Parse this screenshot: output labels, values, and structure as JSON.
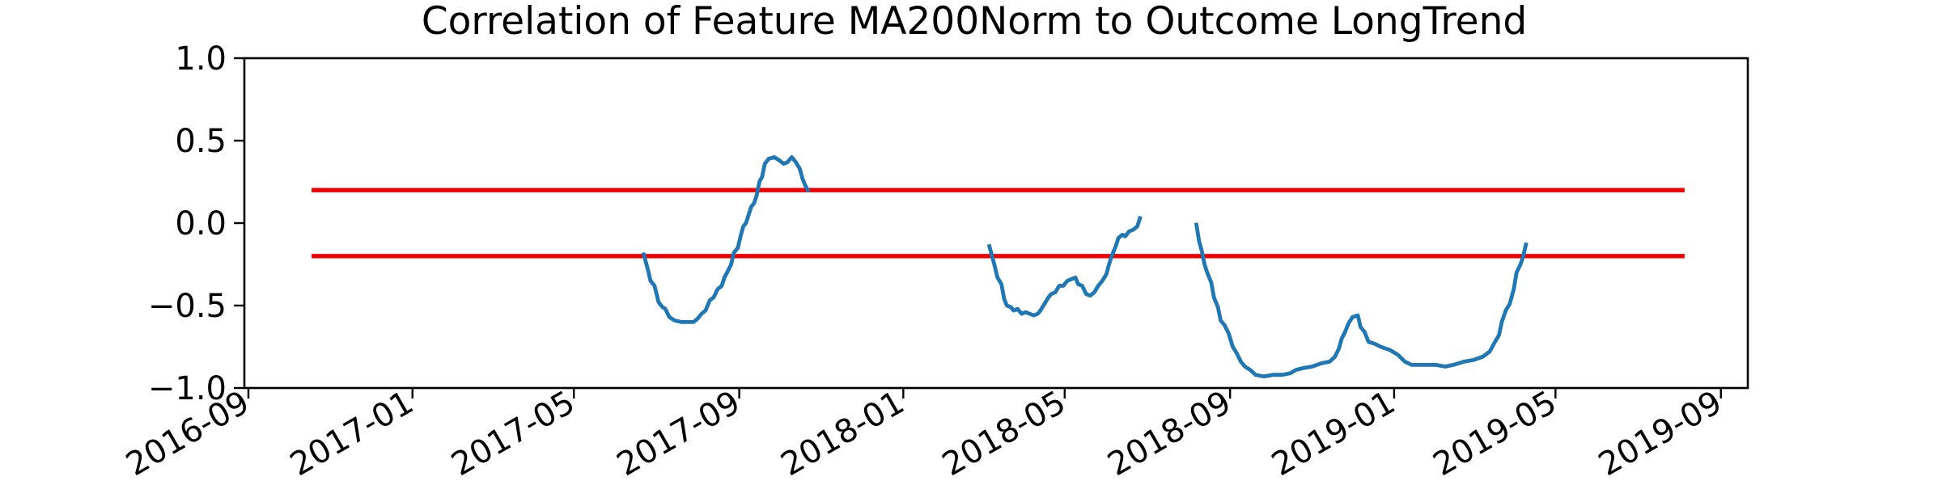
{
  "chart_data": {
    "type": "line",
    "title": "Correlation of Feature MA200Norm to Outcome LongTrend",
    "xlabel": "",
    "ylabel": "",
    "ylim": [
      -1.0,
      1.0
    ],
    "xlim": [
      "2016-08-29",
      "2019-09-21"
    ],
    "yticks": [
      {
        "value": 1.0,
        "label": "1.0"
      },
      {
        "value": 0.5,
        "label": "0.5"
      },
      {
        "value": 0.0,
        "label": "0.0"
      },
      {
        "value": -0.5,
        "label": "−0.5"
      },
      {
        "value": -1.0,
        "label": "−1.0"
      }
    ],
    "xticks": [
      {
        "date": "2016-09-01",
        "label": "2016-09"
      },
      {
        "date": "2017-01-01",
        "label": "2017-01"
      },
      {
        "date": "2017-05-01",
        "label": "2017-05"
      },
      {
        "date": "2017-09-01",
        "label": "2017-09"
      },
      {
        "date": "2018-01-01",
        "label": "2018-01"
      },
      {
        "date": "2018-05-01",
        "label": "2018-05"
      },
      {
        "date": "2018-09-01",
        "label": "2018-09"
      },
      {
        "date": "2019-01-01",
        "label": "2019-01"
      },
      {
        "date": "2019-05-01",
        "label": "2019-05"
      },
      {
        "date": "2019-09-01",
        "label": "2019-09"
      }
    ],
    "grid": false,
    "thresholds": [
      {
        "value": 0.2,
        "x_start": "2016-10-18",
        "x_end": "2019-08-05",
        "color": "#ee0000"
      },
      {
        "value": -0.2,
        "x_start": "2016-10-18",
        "x_end": "2019-08-05",
        "color": "#ee0000"
      }
    ],
    "series": [
      {
        "color": "#1f77b4",
        "segments": [
          [
            {
              "x": "2017-06-22",
              "y": -0.19
            },
            {
              "x": "2017-06-25",
              "y": -0.28
            },
            {
              "x": "2017-06-27",
              "y": -0.35
            },
            {
              "x": "2017-06-30",
              "y": -0.38
            },
            {
              "x": "2017-07-03",
              "y": -0.48
            },
            {
              "x": "2017-07-06",
              "y": -0.51
            },
            {
              "x": "2017-07-08",
              "y": -0.52
            },
            {
              "x": "2017-07-11",
              "y": -0.57
            },
            {
              "x": "2017-07-15",
              "y": -0.59
            },
            {
              "x": "2017-07-20",
              "y": -0.6
            },
            {
              "x": "2017-07-25",
              "y": -0.6
            },
            {
              "x": "2017-07-29",
              "y": -0.6
            },
            {
              "x": "2017-08-01",
              "y": -0.58
            },
            {
              "x": "2017-08-04",
              "y": -0.55
            },
            {
              "x": "2017-08-07",
              "y": -0.53
            },
            {
              "x": "2017-08-10",
              "y": -0.47
            },
            {
              "x": "2017-08-13",
              "y": -0.45
            },
            {
              "x": "2017-08-16",
              "y": -0.4
            },
            {
              "x": "2017-08-19",
              "y": -0.38
            },
            {
              "x": "2017-08-21",
              "y": -0.33
            },
            {
              "x": "2017-08-23",
              "y": -0.3
            },
            {
              "x": "2017-08-26",
              "y": -0.25
            },
            {
              "x": "2017-08-28",
              "y": -0.18
            },
            {
              "x": "2017-08-31",
              "y": -0.15
            },
            {
              "x": "2017-09-02",
              "y": -0.08
            },
            {
              "x": "2017-09-04",
              "y": -0.02
            },
            {
              "x": "2017-09-06",
              "y": 0.0
            },
            {
              "x": "2017-09-08",
              "y": 0.05
            },
            {
              "x": "2017-09-10",
              "y": 0.1
            },
            {
              "x": "2017-09-12",
              "y": 0.12
            },
            {
              "x": "2017-09-14",
              "y": 0.17
            },
            {
              "x": "2017-09-16",
              "y": 0.25
            },
            {
              "x": "2017-09-18",
              "y": 0.28
            },
            {
              "x": "2017-09-20",
              "y": 0.36
            },
            {
              "x": "2017-09-23",
              "y": 0.39
            },
            {
              "x": "2017-09-27",
              "y": 0.4
            },
            {
              "x": "2017-10-01",
              "y": 0.38
            },
            {
              "x": "2017-10-04",
              "y": 0.36
            },
            {
              "x": "2017-10-07",
              "y": 0.37
            },
            {
              "x": "2017-10-10",
              "y": 0.4
            },
            {
              "x": "2017-10-13",
              "y": 0.37
            },
            {
              "x": "2017-10-16",
              "y": 0.33
            },
            {
              "x": "2017-10-18",
              "y": 0.27
            },
            {
              "x": "2017-10-20",
              "y": 0.23
            },
            {
              "x": "2017-10-22",
              "y": 0.2
            }
          ],
          [
            {
              "x": "2018-03-06",
              "y": -0.14
            },
            {
              "x": "2018-03-08",
              "y": -0.2
            },
            {
              "x": "2018-03-10",
              "y": -0.26
            },
            {
              "x": "2018-03-12",
              "y": -0.33
            },
            {
              "x": "2018-03-15",
              "y": -0.37
            },
            {
              "x": "2018-03-17",
              "y": -0.46
            },
            {
              "x": "2018-03-19",
              "y": -0.5
            },
            {
              "x": "2018-03-22",
              "y": -0.51
            },
            {
              "x": "2018-03-24",
              "y": -0.53
            },
            {
              "x": "2018-03-27",
              "y": -0.52
            },
            {
              "x": "2018-03-30",
              "y": -0.55
            },
            {
              "x": "2018-04-02",
              "y": -0.54
            },
            {
              "x": "2018-04-05",
              "y": -0.55
            },
            {
              "x": "2018-04-08",
              "y": -0.56
            },
            {
              "x": "2018-04-11",
              "y": -0.55
            },
            {
              "x": "2018-04-13",
              "y": -0.53
            },
            {
              "x": "2018-04-16",
              "y": -0.49
            },
            {
              "x": "2018-04-19",
              "y": -0.45
            },
            {
              "x": "2018-04-21",
              "y": -0.43
            },
            {
              "x": "2018-04-24",
              "y": -0.42
            },
            {
              "x": "2018-04-27",
              "y": -0.38
            },
            {
              "x": "2018-04-30",
              "y": -0.38
            },
            {
              "x": "2018-05-03",
              "y": -0.35
            },
            {
              "x": "2018-05-06",
              "y": -0.34
            },
            {
              "x": "2018-05-09",
              "y": -0.33
            },
            {
              "x": "2018-05-11",
              "y": -0.37
            },
            {
              "x": "2018-05-14",
              "y": -0.38
            },
            {
              "x": "2018-05-17",
              "y": -0.43
            },
            {
              "x": "2018-05-20",
              "y": -0.44
            },
            {
              "x": "2018-05-23",
              "y": -0.42
            },
            {
              "x": "2018-05-26",
              "y": -0.38
            },
            {
              "x": "2018-05-29",
              "y": -0.35
            },
            {
              "x": "2018-06-01",
              "y": -0.31
            },
            {
              "x": "2018-06-03",
              "y": -0.25
            },
            {
              "x": "2018-06-05",
              "y": -0.2
            },
            {
              "x": "2018-06-08",
              "y": -0.14
            },
            {
              "x": "2018-06-10",
              "y": -0.09
            },
            {
              "x": "2018-06-13",
              "y": -0.07
            },
            {
              "x": "2018-06-15",
              "y": -0.08
            },
            {
              "x": "2018-06-18",
              "y": -0.05
            },
            {
              "x": "2018-06-21",
              "y": -0.04
            },
            {
              "x": "2018-06-24",
              "y": -0.02
            },
            {
              "x": "2018-06-26",
              "y": 0.03
            }
          ],
          [
            {
              "x": "2018-08-07",
              "y": -0.01
            },
            {
              "x": "2018-08-09",
              "y": -0.11
            },
            {
              "x": "2018-08-11",
              "y": -0.17
            },
            {
              "x": "2018-08-13",
              "y": -0.25
            },
            {
              "x": "2018-08-15",
              "y": -0.3
            },
            {
              "x": "2018-08-18",
              "y": -0.36
            },
            {
              "x": "2018-08-20",
              "y": -0.45
            },
            {
              "x": "2018-08-23",
              "y": -0.51
            },
            {
              "x": "2018-08-25",
              "y": -0.59
            },
            {
              "x": "2018-08-28",
              "y": -0.62
            },
            {
              "x": "2018-08-31",
              "y": -0.67
            },
            {
              "x": "2018-09-03",
              "y": -0.75
            },
            {
              "x": "2018-09-06",
              "y": -0.79
            },
            {
              "x": "2018-09-09",
              "y": -0.84
            },
            {
              "x": "2018-09-12",
              "y": -0.87
            },
            {
              "x": "2018-09-16",
              "y": -0.89
            },
            {
              "x": "2018-09-20",
              "y": -0.92
            },
            {
              "x": "2018-09-26",
              "y": -0.93
            },
            {
              "x": "2018-10-03",
              "y": -0.92
            },
            {
              "x": "2018-10-10",
              "y": -0.92
            },
            {
              "x": "2018-10-16",
              "y": -0.91
            },
            {
              "x": "2018-10-20",
              "y": -0.89
            },
            {
              "x": "2018-10-25",
              "y": -0.88
            },
            {
              "x": "2018-11-01",
              "y": -0.87
            },
            {
              "x": "2018-11-08",
              "y": -0.85
            },
            {
              "x": "2018-11-14",
              "y": -0.84
            },
            {
              "x": "2018-11-18",
              "y": -0.81
            },
            {
              "x": "2018-11-21",
              "y": -0.76
            },
            {
              "x": "2018-11-23",
              "y": -0.7
            },
            {
              "x": "2018-11-25",
              "y": -0.67
            },
            {
              "x": "2018-11-28",
              "y": -0.61
            },
            {
              "x": "2018-12-01",
              "y": -0.57
            },
            {
              "x": "2018-12-05",
              "y": -0.56
            },
            {
              "x": "2018-12-07",
              "y": -0.63
            },
            {
              "x": "2018-12-10",
              "y": -0.66
            },
            {
              "x": "2018-12-13",
              "y": -0.72
            },
            {
              "x": "2018-12-17",
              "y": -0.73
            },
            {
              "x": "2018-12-22",
              "y": -0.75
            },
            {
              "x": "2018-12-29",
              "y": -0.77
            },
            {
              "x": "2019-01-04",
              "y": -0.8
            },
            {
              "x": "2019-01-09",
              "y": -0.84
            },
            {
              "x": "2019-01-14",
              "y": -0.86
            },
            {
              "x": "2019-01-22",
              "y": -0.86
            },
            {
              "x": "2019-02-01",
              "y": -0.86
            },
            {
              "x": "2019-02-08",
              "y": -0.87
            },
            {
              "x": "2019-02-14",
              "y": -0.86
            },
            {
              "x": "2019-02-22",
              "y": -0.84
            },
            {
              "x": "2019-03-01",
              "y": -0.83
            },
            {
              "x": "2019-03-08",
              "y": -0.81
            },
            {
              "x": "2019-03-13",
              "y": -0.78
            },
            {
              "x": "2019-03-17",
              "y": -0.72
            },
            {
              "x": "2019-03-20",
              "y": -0.68
            },
            {
              "x": "2019-03-22",
              "y": -0.6
            },
            {
              "x": "2019-03-25",
              "y": -0.53
            },
            {
              "x": "2019-03-28",
              "y": -0.49
            },
            {
              "x": "2019-03-31",
              "y": -0.4
            },
            {
              "x": "2019-04-02",
              "y": -0.3
            },
            {
              "x": "2019-04-05",
              "y": -0.25
            },
            {
              "x": "2019-04-07",
              "y": -0.2
            },
            {
              "x": "2019-04-09",
              "y": -0.13
            }
          ]
        ]
      }
    ]
  }
}
